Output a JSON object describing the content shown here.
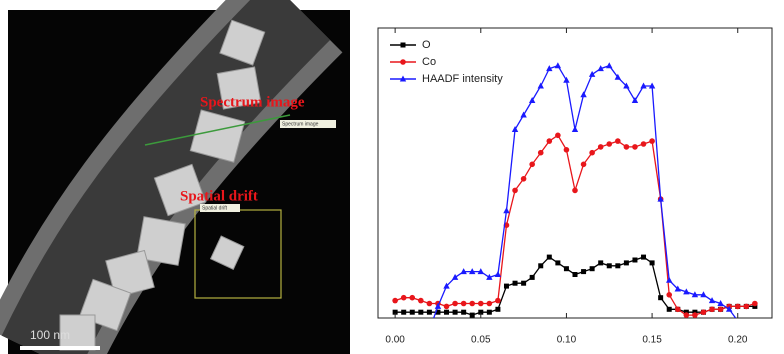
{
  "image": {
    "labels": [
      "Spectrum image",
      "Spatial drift"
    ],
    "box_labels": [
      "Spectrum image",
      "Spatial drift"
    ],
    "scale_bar": "100 nm"
  },
  "chart_data": {
    "type": "line",
    "x": [
      0,
      0.005,
      0.01,
      0.015,
      0.02,
      0.025,
      0.03,
      0.035,
      0.04,
      0.045,
      0.05,
      0.055,
      0.06,
      0.065,
      0.07,
      0.075,
      0.08,
      0.085,
      0.09,
      0.095,
      0.1,
      0.105,
      0.11,
      0.115,
      0.12,
      0.125,
      0.13,
      0.135,
      0.14,
      0.145,
      0.15,
      0.155,
      0.16,
      0.165,
      0.17,
      0.175,
      0.18,
      0.185,
      0.19,
      0.195,
      0.2,
      0.205,
      0.21
    ],
    "series": [
      {
        "name": "O",
        "color": "#000000",
        "marker": "square",
        "values": [
          2,
          2,
          2,
          2,
          2,
          2,
          2,
          2,
          2,
          1,
          2,
          2,
          3,
          11,
          12,
          12,
          14,
          18,
          21,
          19,
          17,
          15,
          16,
          17,
          19,
          18,
          18,
          19,
          20,
          21,
          19,
          7,
          3,
          3,
          2,
          2,
          2,
          3,
          3,
          4,
          4,
          4,
          4
        ]
      },
      {
        "name": "Co",
        "color": "#e8161b",
        "marker": "circle",
        "values": [
          6,
          7,
          7,
          6,
          5,
          5,
          4,
          5,
          5,
          5,
          5,
          5,
          6,
          32,
          44,
          48,
          53,
          57,
          61,
          63,
          58,
          44,
          53,
          57,
          59,
          60,
          61,
          59,
          59,
          60,
          61,
          41,
          8,
          3,
          1,
          1,
          2,
          3,
          3,
          4,
          4,
          4,
          5
        ]
      },
      {
        "name": "HAADF intensity",
        "color": "#1a1aff",
        "marker": "triangle",
        "values": [
          null,
          null,
          null,
          null,
          -4,
          4,
          11,
          14,
          16,
          16,
          16,
          14,
          15,
          37,
          65,
          70,
          75,
          80,
          86,
          87,
          82,
          65,
          77,
          84,
          86,
          87,
          83,
          80,
          75,
          80,
          80,
          41,
          13,
          10,
          9,
          8,
          8,
          6,
          5,
          3,
          -1,
          -4,
          null
        ]
      }
    ],
    "xlim": [
      -0.01,
      0.22
    ],
    "xticks": [
      {
        "value": 0,
        "label": "0.00"
      },
      {
        "value": 0.05,
        "label": "0.05"
      },
      {
        "value": 0.1,
        "label": "0.10"
      },
      {
        "value": 0.15,
        "label": "0.15"
      },
      {
        "value": 0.2,
        "label": "0.20"
      }
    ],
    "ylim": [
      0,
      100
    ],
    "legend": "upper-left"
  }
}
